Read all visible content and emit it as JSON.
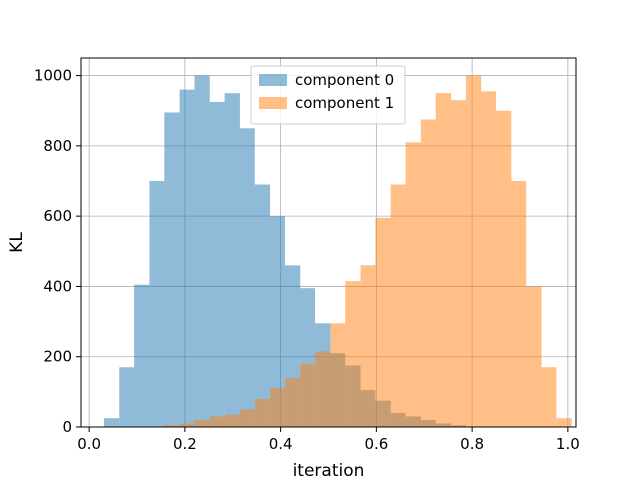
{
  "chart_data": {
    "type": "histogram",
    "title": "",
    "xlabel": "iteration",
    "ylabel": "KL",
    "xlim": [
      -0.017,
      1.017
    ],
    "ylim": [
      0,
      1050
    ],
    "xticks": [
      0.0,
      0.2,
      0.4,
      0.6,
      0.8,
      1.0
    ],
    "xtick_labels": [
      "0.0",
      "0.2",
      "0.4",
      "0.6",
      "0.8",
      "1.0"
    ],
    "yticks": [
      0,
      200,
      400,
      600,
      800,
      1000
    ],
    "ytick_labels": [
      "0",
      "200",
      "400",
      "600",
      "800",
      "1000"
    ],
    "grid": true,
    "legend_position": "top-center",
    "series": [
      {
        "name": "component 0",
        "color": "#1f77b4",
        "alpha": 0.5,
        "bins": [
          {
            "x0": 0.031,
            "x1": 0.063,
            "count": 25
          },
          {
            "x0": 0.063,
            "x1": 0.094,
            "count": 170
          },
          {
            "x0": 0.094,
            "x1": 0.126,
            "count": 405
          },
          {
            "x0": 0.126,
            "x1": 0.157,
            "count": 700
          },
          {
            "x0": 0.157,
            "x1": 0.189,
            "count": 895
          },
          {
            "x0": 0.189,
            "x1": 0.22,
            "count": 960
          },
          {
            "x0": 0.22,
            "x1": 0.252,
            "count": 1000
          },
          {
            "x0": 0.252,
            "x1": 0.283,
            "count": 925
          },
          {
            "x0": 0.283,
            "x1": 0.315,
            "count": 950
          },
          {
            "x0": 0.315,
            "x1": 0.346,
            "count": 850
          },
          {
            "x0": 0.346,
            "x1": 0.378,
            "count": 690
          },
          {
            "x0": 0.378,
            "x1": 0.409,
            "count": 600
          },
          {
            "x0": 0.409,
            "x1": 0.441,
            "count": 460
          },
          {
            "x0": 0.441,
            "x1": 0.472,
            "count": 395
          },
          {
            "x0": 0.472,
            "x1": 0.504,
            "count": 295
          },
          {
            "x0": 0.504,
            "x1": 0.535,
            "count": 210
          },
          {
            "x0": 0.535,
            "x1": 0.567,
            "count": 175
          },
          {
            "x0": 0.567,
            "x1": 0.598,
            "count": 105
          },
          {
            "x0": 0.598,
            "x1": 0.63,
            "count": 75
          },
          {
            "x0": 0.63,
            "x1": 0.661,
            "count": 40
          },
          {
            "x0": 0.661,
            "x1": 0.693,
            "count": 30
          },
          {
            "x0": 0.693,
            "x1": 0.724,
            "count": 20
          },
          {
            "x0": 0.724,
            "x1": 0.756,
            "count": 10
          },
          {
            "x0": 0.756,
            "x1": 0.787,
            "count": 5
          }
        ]
      },
      {
        "name": "component 1",
        "color": "#ff7f0e",
        "alpha": 0.5,
        "bins": [
          {
            "x0": 0.157,
            "x1": 0.189,
            "count": 5
          },
          {
            "x0": 0.189,
            "x1": 0.22,
            "count": 10
          },
          {
            "x0": 0.22,
            "x1": 0.252,
            "count": 20
          },
          {
            "x0": 0.252,
            "x1": 0.283,
            "count": 30
          },
          {
            "x0": 0.283,
            "x1": 0.315,
            "count": 35
          },
          {
            "x0": 0.315,
            "x1": 0.346,
            "count": 50
          },
          {
            "x0": 0.346,
            "x1": 0.378,
            "count": 80
          },
          {
            "x0": 0.378,
            "x1": 0.409,
            "count": 110
          },
          {
            "x0": 0.409,
            "x1": 0.441,
            "count": 140
          },
          {
            "x0": 0.441,
            "x1": 0.472,
            "count": 180
          },
          {
            "x0": 0.472,
            "x1": 0.504,
            "count": 215
          },
          {
            "x0": 0.504,
            "x1": 0.535,
            "count": 295
          },
          {
            "x0": 0.535,
            "x1": 0.567,
            "count": 415
          },
          {
            "x0": 0.567,
            "x1": 0.598,
            "count": 460
          },
          {
            "x0": 0.598,
            "x1": 0.63,
            "count": 595
          },
          {
            "x0": 0.63,
            "x1": 0.661,
            "count": 690
          },
          {
            "x0": 0.661,
            "x1": 0.693,
            "count": 810
          },
          {
            "x0": 0.693,
            "x1": 0.724,
            "count": 875
          },
          {
            "x0": 0.724,
            "x1": 0.756,
            "count": 950
          },
          {
            "x0": 0.756,
            "x1": 0.787,
            "count": 930
          },
          {
            "x0": 0.787,
            "x1": 0.819,
            "count": 1000
          },
          {
            "x0": 0.819,
            "x1": 0.85,
            "count": 955
          },
          {
            "x0": 0.85,
            "x1": 0.882,
            "count": 900
          },
          {
            "x0": 0.882,
            "x1": 0.913,
            "count": 700
          },
          {
            "x0": 0.913,
            "x1": 0.945,
            "count": 400
          },
          {
            "x0": 0.945,
            "x1": 0.976,
            "count": 170
          },
          {
            "x0": 0.976,
            "x1": 1.008,
            "count": 25
          }
        ]
      }
    ]
  }
}
